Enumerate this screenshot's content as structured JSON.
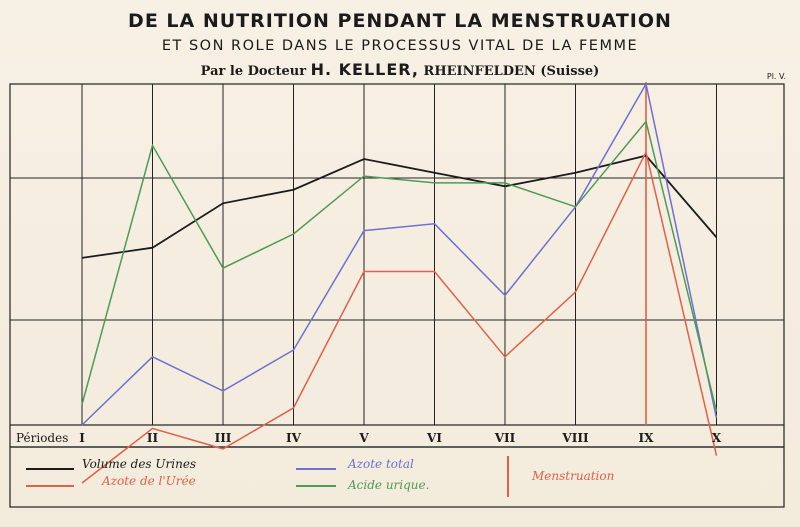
{
  "header": {
    "title": "DE LA NUTRITION PENDANT LA MENSTRUATION",
    "subtitle": "ET SON ROLE DANS LE PROCESSUS VITAL DE LA FEMME",
    "author_prefix": "Par le Docteur",
    "author_name": "H. KELLER,",
    "author_place": "RHEINFELDEN (Suisse)",
    "plate_label": "Pl. V."
  },
  "chart_data": {
    "type": "line",
    "title": "DE LA NUTRITION PENDANT LA MENSTRUATION",
    "xlabel": "Périodes",
    "ylabel": "",
    "grid": true,
    "categories": [
      "I",
      "II",
      "III",
      "IV",
      "V",
      "VI",
      "VII",
      "VIII",
      "IX",
      "X"
    ],
    "ylim": [
      0,
      100
    ],
    "series": [
      {
        "name": "Volume des Urines",
        "color": "#1c1c1c",
        "values": [
          49,
          52,
          65,
          69,
          78,
          74,
          70,
          74,
          79,
          55
        ]
      },
      {
        "name": "Azote de l'Urée",
        "color": "#e06048",
        "values": [
          -17,
          -1,
          -7,
          5,
          45,
          45,
          20,
          39,
          80,
          -9
        ]
      },
      {
        "name": "Azote total",
        "color": "#6f70d0",
        "values": [
          0,
          20,
          10,
          22,
          57,
          59,
          38,
          64,
          100,
          2
        ]
      },
      {
        "name": "Acide urique.",
        "color": "#4f9a55",
        "values": [
          6,
          82,
          46,
          56,
          73,
          71,
          71,
          64,
          89,
          4
        ]
      }
    ],
    "annotations": [
      {
        "name": "Menstruation",
        "color": "#e06048",
        "at_category": "IX"
      }
    ]
  },
  "legend": {
    "volume": "Volume des Urines",
    "azote_uree": "Azote de l'Urée",
    "azote_total": "Azote total",
    "acide_urique": "Acide urique.",
    "menstruation": "Menstruation"
  }
}
